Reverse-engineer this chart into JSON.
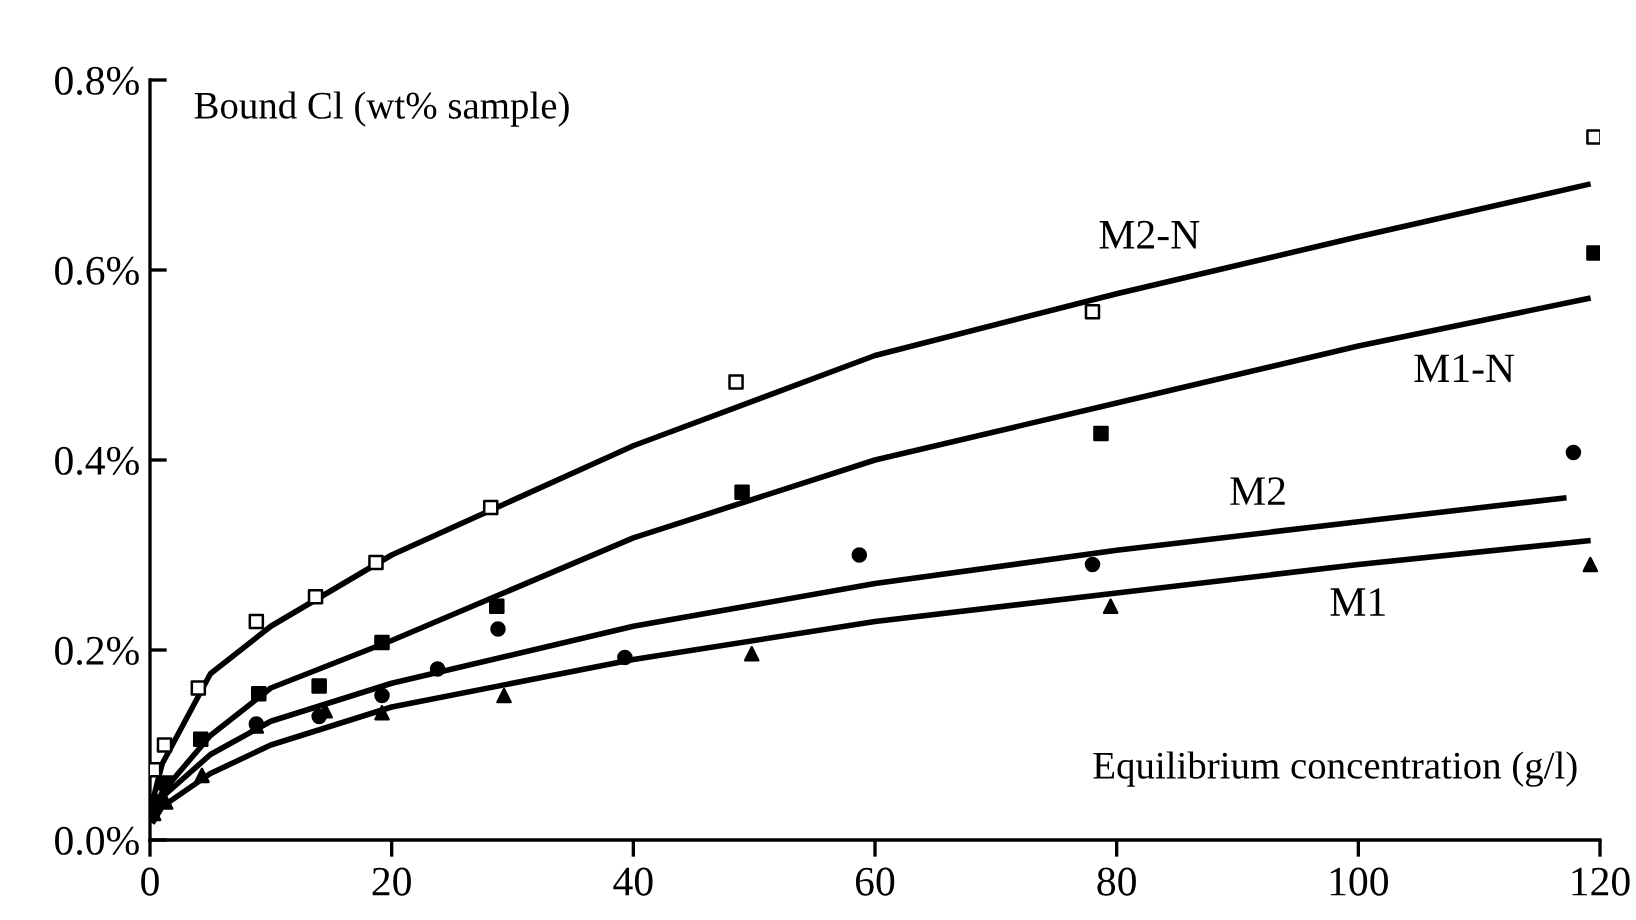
{
  "chart_data": {
    "type": "scatter",
    "xlabel": "Equilibrium concentration (g/l)",
    "ylabel": "Bound Cl (wt% sample)",
    "xlim": [
      0,
      120
    ],
    "xticks": [
      0,
      20,
      40,
      60,
      80,
      100,
      120
    ],
    "ylim": [
      0,
      0.8
    ],
    "yticks": [
      {
        "value": 0,
        "label": "0.0%"
      },
      {
        "value": 0.2,
        "label": "0.2%"
      },
      {
        "value": 0.4,
        "label": "0.4%"
      },
      {
        "value": 0.6,
        "label": "0.6%"
      },
      {
        "value": 0.8,
        "label": "0.8%"
      }
    ],
    "grid": false,
    "series": [
      {
        "marker": "square",
        "color": "#ffffff",
        "x": [
          0.3,
          1.2,
          4,
          8.8,
          13.7,
          18.7,
          28.2,
          48.5,
          78,
          119.5
        ],
        "values": [
          0.074,
          0.1,
          0.16,
          0.23,
          0.256,
          0.292,
          0.35,
          0.482,
          0.556,
          0.74
        ]
      },
      {
        "marker": "square",
        "color": "#000000",
        "x": [
          0.3,
          1.3,
          4.2,
          9,
          14,
          19.2,
          28.7,
          49,
          78.7,
          119.5
        ],
        "values": [
          0.04,
          0.06,
          0.106,
          0.154,
          0.162,
          0.208,
          0.246,
          0.366,
          0.428,
          0.618
        ]
      },
      {
        "marker": "circle",
        "color": "#000000",
        "x": [
          8.8,
          14,
          19.2,
          23.8,
          28.8,
          39.3,
          58.7,
          78,
          117.8
        ],
        "values": [
          0.122,
          0.13,
          0.152,
          0.18,
          0.222,
          0.192,
          0.3,
          0.29,
          0.408
        ]
      },
      {
        "marker": "triangle",
        "color": "#000000",
        "x": [
          0.3,
          1.3,
          4.3,
          8.8,
          14.5,
          19.2,
          29.3,
          49.8,
          79.5,
          119.2
        ],
        "values": [
          0.028,
          0.04,
          0.068,
          0.12,
          0.136,
          0.134,
          0.152,
          0.196,
          0.246,
          0.29
        ]
      },
      {
        "type": "line",
        "color": "#000000",
        "x": [
          0.3,
          1,
          5,
          10,
          20,
          40,
          60,
          80,
          100,
          119
        ],
        "values": [
          0.045,
          0.08,
          0.175,
          0.225,
          0.3,
          0.415,
          0.51,
          0.575,
          0.635,
          0.69
        ]
      },
      {
        "type": "line",
        "color": "#000000",
        "x": [
          0.3,
          1,
          5,
          10,
          20,
          40,
          60,
          80,
          100,
          119
        ],
        "values": [
          0.03,
          0.05,
          0.11,
          0.16,
          0.21,
          0.318,
          0.4,
          0.46,
          0.52,
          0.57
        ]
      },
      {
        "type": "line",
        "color": "#000000",
        "x": [
          0.3,
          1,
          5,
          10,
          20,
          40,
          60,
          80,
          100,
          117
        ],
        "values": [
          0.025,
          0.045,
          0.09,
          0.125,
          0.165,
          0.225,
          0.27,
          0.305,
          0.335,
          0.36
        ]
      },
      {
        "type": "line",
        "color": "#000000",
        "x": [
          0.3,
          1,
          5,
          10,
          20,
          40,
          60,
          80,
          100,
          119
        ],
        "values": [
          0.02,
          0.035,
          0.07,
          0.1,
          0.14,
          0.19,
          0.23,
          0.26,
          0.29,
          0.315
        ]
      }
    ],
    "annotations": [
      {
        "text": "M2-N",
        "x": 85,
        "y": 0.59
      },
      {
        "text": "M1-N",
        "x": 106,
        "y": 0.536
      },
      {
        "text": "M2",
        "x": 94,
        "y": 0.326
      },
      {
        "text": "M1",
        "x": 100,
        "y": 0.29
      }
    ]
  }
}
